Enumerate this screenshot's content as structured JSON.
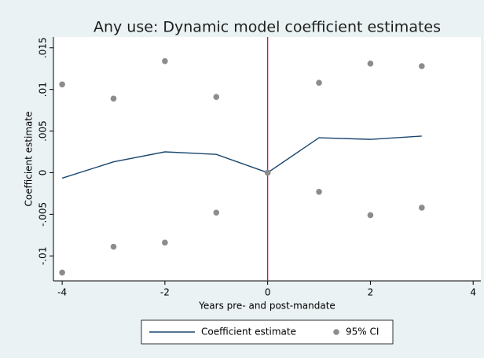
{
  "chart_data": {
    "type": "line",
    "title": "Any use: Dynamic model coefficient estimates",
    "x_label": "Years pre- and post-mandate",
    "y_label": "Coefficient estimate",
    "x": [
      -4,
      -3,
      -2,
      -1,
      0,
      1,
      2,
      3
    ],
    "series": [
      {
        "name": "Coefficient estimate",
        "type": "line",
        "color": "#1a476f",
        "values": [
          -0.00066,
          0.0013,
          0.0025,
          0.0022,
          0,
          0.0042,
          0.004,
          0.0044
        ]
      },
      {
        "name": "95% CI",
        "type": "scatter",
        "color": "#8c8c8c",
        "values": [
          0.0106,
          0.0089,
          0.0134,
          0.0091,
          0,
          0.0108,
          0.0131,
          0.0128
        ],
        "lower": [
          -0.012,
          -0.0089,
          -0.0084,
          -0.0048,
          0,
          -0.0023,
          -0.0051,
          -0.0042
        ]
      }
    ],
    "xlim": [
      -4.17,
      4.15
    ],
    "ylim": [
      -0.013,
      0.0163
    ],
    "xticks": [
      -4,
      -2,
      0,
      2,
      4
    ],
    "yticks": [
      {
        "value": 0.015,
        "label": ".015"
      },
      {
        "value": 0.01,
        "label": ".01"
      },
      {
        "value": 0.005,
        "label": ".005"
      },
      0,
      {
        "value": -0.005,
        "label": "-.005"
      },
      {
        "value": -0.01,
        "label": "-.01"
      }
    ],
    "reference_line": {
      "x": 0,
      "color": "#d4143c"
    },
    "legend": "bottom"
  }
}
